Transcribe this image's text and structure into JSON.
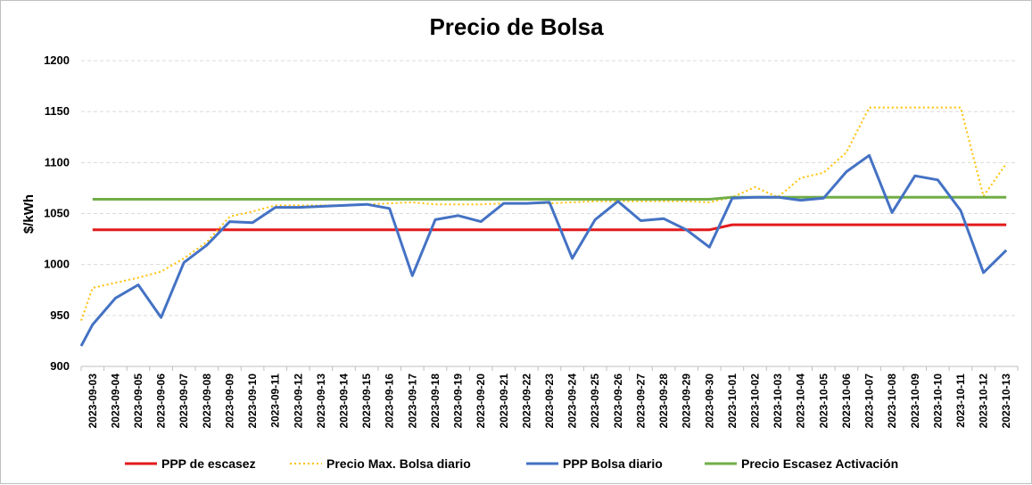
{
  "chart_data": {
    "type": "line",
    "title": "Precio de Bolsa",
    "ylabel": "$/kWh",
    "xlabel": "",
    "ylim": [
      900,
      1200
    ],
    "yticks": [
      900,
      950,
      1000,
      1050,
      1100,
      1150,
      1200
    ],
    "grid": true,
    "legend_position": "bottom",
    "categories": [
      "2023-09-03",
      "2023-09-04",
      "2023-09-05",
      "2023-09-06",
      "2023-09-07",
      "2023-09-08",
      "2023-09-09",
      "2023-09-10",
      "2023-09-11",
      "2023-09-12",
      "2023-09-13",
      "2023-09-14",
      "2023-09-15",
      "2023-09-16",
      "2023-09-17",
      "2023-09-18",
      "2023-09-19",
      "2023-09-20",
      "2023-09-21",
      "2023-09-22",
      "2023-09-23",
      "2023-09-24",
      "2023-09-25",
      "2023-09-26",
      "2023-09-27",
      "2023-09-28",
      "2023-09-29",
      "2023-09-30",
      "2023-10-01",
      "2023-10-02",
      "2023-10-03",
      "2023-10-04",
      "2023-10-05",
      "2023-10-06",
      "2023-10-07",
      "2023-10-08",
      "2023-10-09",
      "2023-10-10",
      "2023-10-11",
      "2023-10-12",
      "2023-10-13"
    ],
    "series": [
      {
        "name": "PPP de escasez",
        "color": "#e31a1c",
        "style": "solid",
        "values": [
          1034,
          1034,
          1034,
          1034,
          1034,
          1034,
          1034,
          1034,
          1034,
          1034,
          1034,
          1034,
          1034,
          1034,
          1034,
          1034,
          1034,
          1034,
          1034,
          1034,
          1034,
          1034,
          1034,
          1034,
          1034,
          1034,
          1034,
          1034,
          1039,
          1039,
          1039,
          1039,
          1039,
          1039,
          1039,
          1039,
          1039,
          1039,
          1039,
          1039,
          1039
        ]
      },
      {
        "name": "Precio Max. Bolsa diario",
        "color": "#ffc000",
        "style": "dotted",
        "values": [
          977,
          982,
          987,
          993,
          1006,
          1022,
          1047,
          1052,
          1058,
          1058,
          1058,
          1058,
          1059,
          1060,
          1061,
          1059,
          1059,
          1059,
          1060,
          1060,
          1060,
          1061,
          1062,
          1062,
          1062,
          1062,
          1062,
          1061,
          1066,
          1076,
          1066,
          1085,
          1090,
          1110,
          1154,
          1154,
          1154,
          1154,
          1154,
          1067,
          1099
        ]
      },
      {
        "name": "PPP Bolsa diario",
        "color": "#4472c4",
        "style": "solid",
        "values": [
          941,
          967,
          980,
          948,
          1002,
          1019,
          1042,
          1041,
          1056,
          1056,
          1057,
          1058,
          1059,
          1055,
          989,
          1044,
          1048,
          1042,
          1060,
          1060,
          1061,
          1006,
          1044,
          1062,
          1043,
          1045,
          1034,
          1017,
          1065,
          1066,
          1066,
          1063,
          1065,
          1091,
          1107,
          1051,
          1087,
          1083,
          1053,
          992,
          1014
        ]
      },
      {
        "name": "Precio Escasez Activación",
        "color": "#70ad47",
        "style": "solid",
        "values": [
          1064,
          1064,
          1064,
          1064,
          1064,
          1064,
          1064,
          1064,
          1064,
          1064,
          1064,
          1064,
          1064,
          1064,
          1064,
          1064,
          1064,
          1064,
          1064,
          1064,
          1064,
          1064,
          1064,
          1064,
          1064,
          1064,
          1064,
          1064,
          1066,
          1066,
          1066,
          1066,
          1066,
          1066,
          1066,
          1066,
          1066,
          1066,
          1066,
          1066,
          1066
        ]
      }
    ]
  }
}
